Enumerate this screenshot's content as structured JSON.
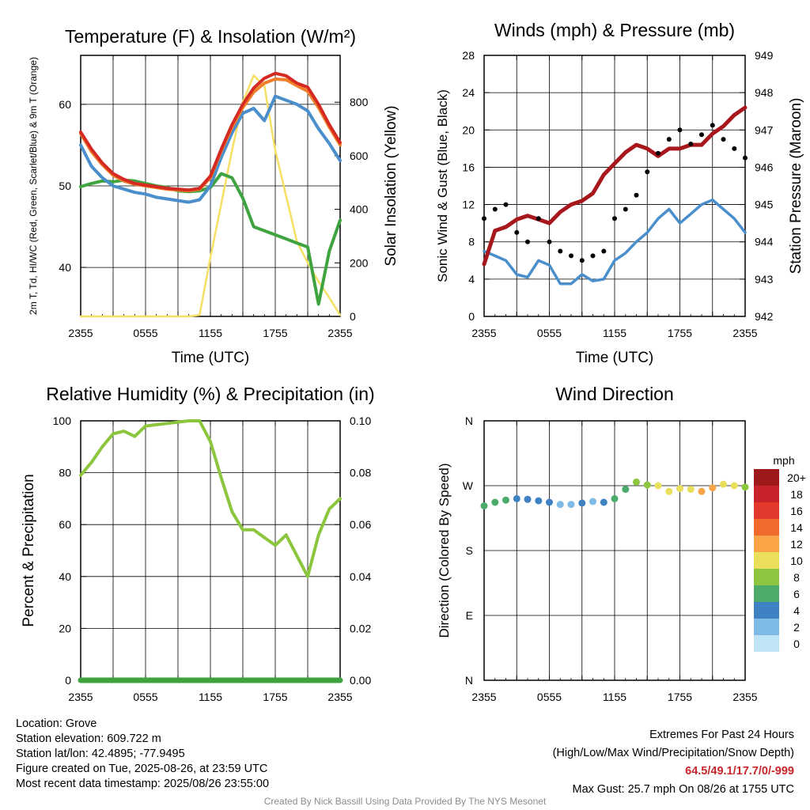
{
  "chart_data": [
    {
      "type": "line",
      "title": "Temperature (F) & Insolation (W/m²)",
      "xlabel": "Time (UTC)",
      "ylabel_left": "2m T, Td, HI/WC (Red, Green, Scarlet/Blue) & 9m T (Orange)",
      "ylabel_right": "Solar Insolation (Yellow)",
      "x_ticks": [
        "2355",
        "0555",
        "1155",
        "1755",
        "2355"
      ],
      "y_left_ticks": [
        40,
        50,
        60
      ],
      "y_left_range": [
        34,
        66
      ],
      "y_right_ticks": [
        0,
        200,
        400,
        600,
        800
      ],
      "y_right_range": [
        0,
        975
      ],
      "x_hours": [
        0,
        1,
        2,
        3,
        4,
        5,
        6,
        7,
        8,
        9,
        10,
        11,
        12,
        13,
        14,
        15,
        16,
        17,
        18,
        19,
        20,
        21,
        22,
        23,
        24
      ],
      "series": [
        {
          "name": "2m T",
          "color": "#d42a22",
          "axis": "left",
          "values": [
            56.6,
            54.5,
            52.8,
            51.5,
            50.8,
            50.3,
            50.1,
            49.9,
            49.7,
            49.6,
            49.5,
            49.7,
            51.2,
            54.5,
            57.5,
            60.0,
            62.0,
            63.2,
            63.8,
            63.5,
            62.6,
            62.1,
            60.0,
            57.5,
            55.3
          ]
        },
        {
          "name": "9m T",
          "color": "#f07f2c",
          "axis": "left",
          "values": [
            56.4,
            54.2,
            52.6,
            51.3,
            50.6,
            50.2,
            50.0,
            49.8,
            49.6,
            49.5,
            49.4,
            49.6,
            51.0,
            54.3,
            57.2,
            59.6,
            61.5,
            62.6,
            63.1,
            63.0,
            62.3,
            61.6,
            59.6,
            57.2,
            55.0
          ]
        },
        {
          "name": "HI/WC",
          "color": "#4a8fcc",
          "axis": "left",
          "values": [
            55.0,
            52.4,
            51.0,
            50.0,
            49.6,
            49.2,
            49.0,
            48.6,
            48.4,
            48.2,
            48.0,
            48.3,
            50.0,
            53.5,
            56.5,
            58.9,
            59.5,
            58.0,
            61.0,
            60.5,
            60.0,
            59.2,
            57.0,
            55.2,
            53.1
          ]
        },
        {
          "name": "Td",
          "color": "#3fa43f",
          "axis": "left",
          "values": [
            49.9,
            50.3,
            50.6,
            50.5,
            50.7,
            50.6,
            50.3,
            50.0,
            49.8,
            49.4,
            49.3,
            49.4,
            49.8,
            51.5,
            51.0,
            48.5,
            45.0,
            44.5,
            44.0,
            43.5,
            43.0,
            42.5,
            35.5,
            42.0,
            45.8
          ]
        },
        {
          "name": "Solar Insolation",
          "color": "#f6e064",
          "axis": "right",
          "values": [
            0,
            0,
            0,
            0,
            0,
            0,
            0,
            0,
            0,
            0,
            0,
            5,
            220,
            420,
            620,
            800,
            900,
            860,
            620,
            450,
            280,
            200,
            130,
            70,
            5
          ]
        }
      ]
    },
    {
      "type": "line",
      "title": "Winds (mph) & Pressure (mb)",
      "xlabel": "Time (UTC)",
      "ylabel_left": "Sonic Wind & Gust (Blue, Black)",
      "ylabel_right": "Station Pressure (Maroon)",
      "x_ticks": [
        "2355",
        "0555",
        "1155",
        "1755",
        "2355"
      ],
      "y_left_ticks": [
        0,
        4,
        8,
        12,
        16,
        20,
        24,
        28
      ],
      "y_left_range": [
        0,
        28
      ],
      "y_right_ticks": [
        942,
        943,
        944,
        945,
        946,
        947,
        948,
        949
      ],
      "y_right_range": [
        942,
        949
      ],
      "x_hours": [
        0,
        1,
        2,
        3,
        4,
        5,
        6,
        7,
        8,
        9,
        10,
        11,
        12,
        13,
        14,
        15,
        16,
        17,
        18,
        19,
        20,
        21,
        22,
        23,
        24
      ],
      "series": [
        {
          "name": "Sonic Wind",
          "color": "#4a8fcc",
          "axis": "left",
          "values": [
            7.0,
            6.5,
            6.0,
            4.5,
            4.2,
            6.0,
            5.5,
            3.5,
            3.5,
            4.5,
            3.8,
            4.0,
            6.0,
            6.8,
            8.0,
            9.0,
            10.5,
            11.5,
            10.0,
            11.0,
            12.0,
            12.5,
            11.5,
            10.5,
            9.0
          ]
        },
        {
          "name": "Station Pressure",
          "color": "#a8171c",
          "axis": "right",
          "values": [
            943.4,
            944.3,
            944.4,
            944.6,
            944.7,
            944.6,
            944.5,
            944.8,
            945.0,
            945.1,
            945.3,
            945.8,
            946.1,
            946.4,
            946.6,
            946.5,
            946.3,
            946.5,
            946.5,
            946.6,
            946.6,
            946.9,
            947.1,
            947.4,
            947.6
          ]
        },
        {
          "name": "Gust",
          "color": "#000000",
          "axis": "left",
          "values": [
            10.5,
            11.5,
            12.0,
            9.0,
            8.0,
            10.5,
            8.0,
            7.0,
            6.5,
            6.0,
            6.5,
            7.0,
            10.5,
            11.5,
            13.0,
            15.5,
            17.5,
            19.0,
            20.0,
            18.5,
            19.5,
            20.5,
            19.0,
            18.0,
            17.0
          ]
        }
      ]
    },
    {
      "type": "line",
      "title": "Relative Humidity (%) & Precipitation (in)",
      "ylabel_left": "Percent & Precipitation",
      "x_ticks": [
        "2355",
        "0555",
        "1155",
        "1755",
        "2355"
      ],
      "y_left_ticks": [
        0,
        20,
        40,
        60,
        80,
        100
      ],
      "y_left_range": [
        0,
        100
      ],
      "y_right_ticks": [
        "0.00",
        "0.02",
        "0.04",
        "0.06",
        "0.08",
        "0.10"
      ],
      "y_right_range": [
        0,
        0.1
      ],
      "x_hours": [
        0,
        1,
        2,
        3,
        4,
        5,
        6,
        7,
        8,
        9,
        10,
        11,
        12,
        13,
        14,
        15,
        16,
        17,
        18,
        19,
        20,
        21,
        22,
        23,
        24
      ],
      "series": [
        {
          "name": "Relative Humidity",
          "color": "#8cc63f",
          "axis": "left",
          "values": [
            79,
            84,
            90,
            95,
            96,
            94,
            98,
            98.5,
            99,
            99.5,
            100,
            100,
            92,
            78,
            65,
            58,
            58,
            55,
            52,
            56,
            48,
            40,
            56,
            66,
            70
          ]
        },
        {
          "name": "Precipitation",
          "color": "#3fa43f",
          "axis": "right",
          "values": [
            0,
            0,
            0,
            0,
            0,
            0,
            0,
            0,
            0,
            0,
            0,
            0,
            0,
            0,
            0,
            0,
            0,
            0,
            0,
            0,
            0,
            0,
            0,
            0,
            0
          ]
        }
      ]
    },
    {
      "type": "scatter",
      "title": "Wind Direction",
      "ylabel": "Direction (Colored By Speed)",
      "x_ticks": [
        "2355",
        "0555",
        "1155",
        "1755",
        "2355"
      ],
      "y_ticks": [
        "N",
        "E",
        "S",
        "W",
        "N"
      ],
      "y_range": [
        0,
        360
      ],
      "x_hours": [
        0,
        1,
        2,
        3,
        4,
        5,
        6,
        7,
        8,
        9,
        10,
        11,
        12,
        13,
        14,
        15,
        16,
        17,
        18,
        19,
        20,
        21,
        22,
        23,
        24
      ],
      "direction_deg": [
        242,
        247,
        250,
        252,
        251,
        249,
        247,
        244,
        244,
        246,
        248,
        247,
        252,
        265,
        275,
        271,
        270,
        262,
        266,
        265,
        262,
        267,
        272,
        270,
        268
      ],
      "speed_mph": [
        6,
        7,
        6,
        5,
        4,
        5,
        5,
        3,
        3,
        4,
        3,
        4,
        6,
        7,
        8,
        9,
        10,
        11,
        10,
        11,
        12,
        12,
        11,
        10,
        9
      ],
      "colorbar_title": "mph",
      "colorbar_labels": [
        "20+",
        "18",
        "16",
        "14",
        "12",
        "10",
        "8",
        "6",
        "4",
        "2",
        "0"
      ],
      "colorbar_colors": [
        "#9e1a1a",
        "#c8232a",
        "#e2392c",
        "#f06a2e",
        "#f8a447",
        "#e9df5b",
        "#8cc63f",
        "#4cab6a",
        "#3f82c4",
        "#7fbbe6",
        "#bfe4f6"
      ]
    }
  ],
  "footer": {
    "location": "Location: Grove",
    "elevation": "Station elevation: 609.722 m",
    "latlon": "Station lat/lon: 42.4895; -77.9495",
    "created": "Figure created on Tue, 2025-08-26, at 23:59 UTC",
    "recent": "Most recent data timestamp: 2025/08/26 23:55:00",
    "extremes_title": "Extremes For Past 24 Hours",
    "extremes_sub": "(High/Low/Max Wind/Precipitation/Snow Depth)",
    "extremes_values": "64.5/49.1/17.7/0/-999",
    "max_gust": "Max Gust: 25.7 mph On 08/26 at 1755 UTC",
    "credit": "Created By Nick Bassill Using Data Provided By The NYS Mesonet"
  }
}
